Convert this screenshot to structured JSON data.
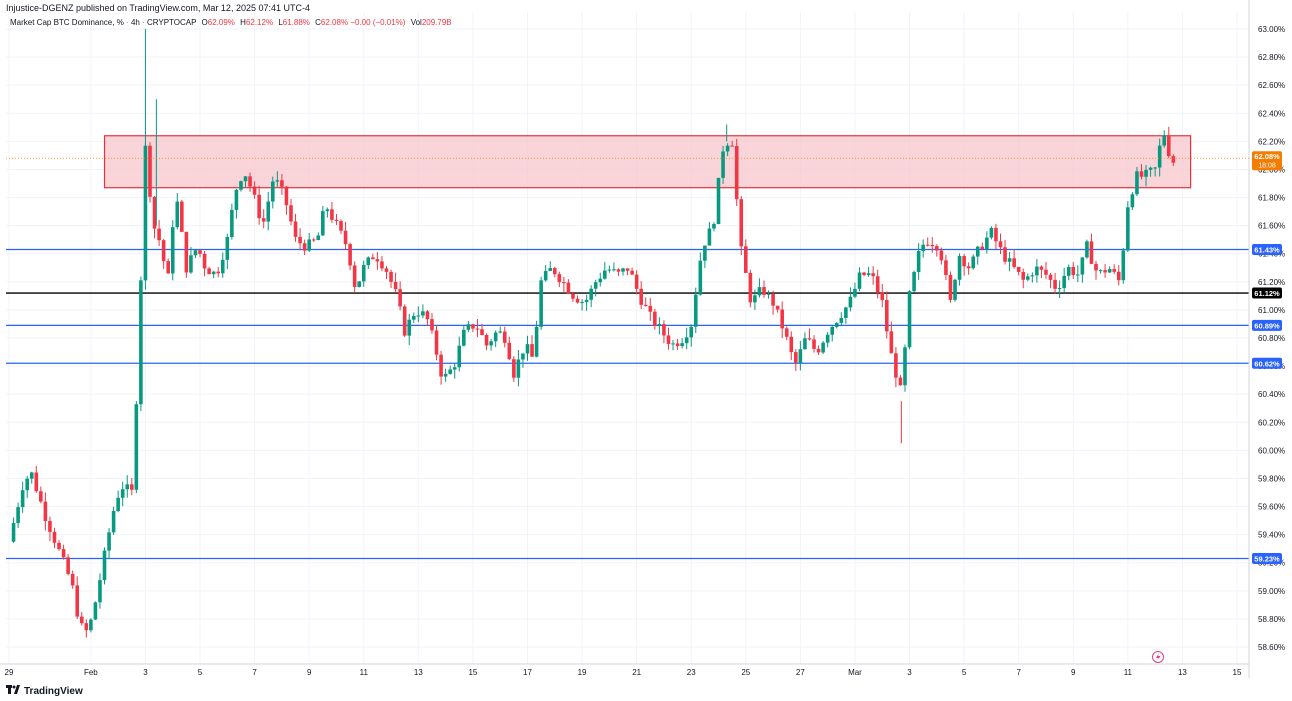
{
  "header": {
    "publisher": "Injustice-DGENZ published on TradingView.com, Mar 12, 2025 07:41 UTC-4",
    "symbol": "Market Cap BTC Dominance, %",
    "interval": "4h",
    "exchange": "CRYPTOCAP",
    "ohlc": {
      "o_label": "O",
      "o": "62.09%",
      "h_label": "H",
      "h": "62.12%",
      "l_label": "L",
      "l": "61.88%",
      "c_label": "C",
      "c": "62.08%",
      "chg": "−0.00 (−0.01%)",
      "vol_label": "Vol",
      "vol": "209.79B"
    }
  },
  "footer": {
    "brand": "TradingView",
    "logo": "tradingview-logo-icon"
  },
  "colors": {
    "up": "#089981",
    "down": "#f23645",
    "hline": "#2962ff",
    "support_black": "#000000",
    "zone_fill": "#f7c7cc",
    "zone_border": "#e6323e",
    "price_tag": "#f57c00",
    "grid": "#f0f3fa"
  },
  "chart_data": {
    "type": "candlestick",
    "ylim": [
      58.55,
      63.02
    ],
    "y_ticks": [
      "58.60%",
      "58.80%",
      "59.00%",
      "59.20%",
      "59.40%",
      "59.60%",
      "59.80%",
      "60.00%",
      "60.20%",
      "60.40%",
      "60.60%",
      "60.80%",
      "61.00%",
      "61.20%",
      "61.40%",
      "61.60%",
      "61.80%",
      "62.00%",
      "62.20%",
      "62.40%",
      "62.60%",
      "62.80%",
      "63.00%"
    ],
    "y_tick_values": [
      58.6,
      58.8,
      59.0,
      59.2,
      59.4,
      59.6,
      59.8,
      60.0,
      60.2,
      60.4,
      60.6,
      60.8,
      61.0,
      61.2,
      61.4,
      61.6,
      61.8,
      62.0,
      62.2,
      62.4,
      62.6,
      62.8,
      63.0
    ],
    "x_ticks": [
      {
        "label": "29",
        "day": 0
      },
      {
        "label": "Feb",
        "day": 3
      },
      {
        "label": "3",
        "day": 5
      },
      {
        "label": "5",
        "day": 7
      },
      {
        "label": "7",
        "day": 9
      },
      {
        "label": "9",
        "day": 11
      },
      {
        "label": "11",
        "day": 13
      },
      {
        "label": "13",
        "day": 15
      },
      {
        "label": "15",
        "day": 17
      },
      {
        "label": "17",
        "day": 19
      },
      {
        "label": "19",
        "day": 21
      },
      {
        "label": "21",
        "day": 23
      },
      {
        "label": "23",
        "day": 25
      },
      {
        "label": "25",
        "day": 27
      },
      {
        "label": "27",
        "day": 29
      },
      {
        "label": "Mar",
        "day": 31
      },
      {
        "label": "3",
        "day": 33
      },
      {
        "label": "5",
        "day": 35
      },
      {
        "label": "7",
        "day": 37
      },
      {
        "label": "9",
        "day": 39
      },
      {
        "label": "11",
        "day": 41
      },
      {
        "label": "13",
        "day": 43
      },
      {
        "label": "15",
        "day": 45
      }
    ],
    "day_range": [
      0,
      45.2
    ],
    "current_price": {
      "label": "62.08%",
      "countdown": "18:08",
      "value": 62.08
    },
    "horizontal_lines": [
      {
        "value": 61.43,
        "label": "61.43%",
        "color": "#2962ff"
      },
      {
        "value": 61.12,
        "label": "61.12%",
        "color": "#000000"
      },
      {
        "value": 60.89,
        "label": "60.89%",
        "color": "#2962ff"
      },
      {
        "value": 60.62,
        "label": "60.62%",
        "color": "#2962ff"
      },
      {
        "value": 59.23,
        "label": "59.23%",
        "color": "#2962ff"
      }
    ],
    "resistance_zone": {
      "top": 62.24,
      "bottom": 61.87,
      "day_start": 3.5,
      "day_end": 43.3
    },
    "anchors": [
      [
        0,
        59.35
      ],
      [
        0.5,
        59.75
      ],
      [
        0.8,
        59.85
      ],
      [
        1.3,
        59.55
      ],
      [
        1.8,
        59.3
      ],
      [
        2.3,
        59.05
      ],
      [
        2.6,
        58.75
      ],
      [
        2.9,
        58.7
      ],
      [
        3.2,
        58.95
      ],
      [
        3.5,
        59.25
      ],
      [
        3.8,
        59.55
      ],
      [
        4.1,
        59.75
      ],
      [
        4.5,
        59.7
      ],
      [
        4.7,
        60.5
      ],
      [
        5.0,
        62.15
      ],
      [
        5.3,
        61.6
      ],
      [
        5.6,
        61.45
      ],
      [
        5.8,
        61.15
      ],
      [
        6.1,
        61.85
      ],
      [
        6.5,
        61.3
      ],
      [
        6.9,
        61.45
      ],
      [
        7.2,
        61.3
      ],
      [
        7.6,
        61.25
      ],
      [
        8.0,
        61.5
      ],
      [
        8.3,
        61.85
      ],
      [
        8.6,
        62.0
      ],
      [
        8.9,
        61.85
      ],
      [
        9.3,
        61.6
      ],
      [
        9.7,
        61.95
      ],
      [
        10.1,
        61.8
      ],
      [
        10.5,
        61.5
      ],
      [
        10.9,
        61.45
      ],
      [
        11.3,
        61.5
      ],
      [
        11.6,
        61.75
      ],
      [
        12.0,
        61.6
      ],
      [
        12.4,
        61.45
      ],
      [
        12.7,
        61.15
      ],
      [
        13.0,
        61.3
      ],
      [
        13.4,
        61.4
      ],
      [
        13.8,
        61.3
      ],
      [
        14.2,
        61.1
      ],
      [
        14.5,
        60.85
      ],
      [
        14.9,
        61.0
      ],
      [
        15.3,
        60.95
      ],
      [
        15.6,
        60.75
      ],
      [
        15.9,
        60.5
      ],
      [
        16.3,
        60.6
      ],
      [
        16.7,
        60.85
      ],
      [
        17.1,
        60.9
      ],
      [
        17.5,
        60.75
      ],
      [
        17.9,
        60.85
      ],
      [
        18.2,
        60.8
      ],
      [
        18.5,
        60.55
      ],
      [
        18.9,
        60.75
      ],
      [
        19.2,
        60.65
      ],
      [
        19.5,
        61.2
      ],
      [
        19.9,
        61.3
      ],
      [
        20.3,
        61.2
      ],
      [
        20.7,
        61.1
      ],
      [
        21.1,
        61.05
      ],
      [
        21.5,
        61.2
      ],
      [
        21.9,
        61.3
      ],
      [
        22.3,
        61.25
      ],
      [
        22.7,
        61.3
      ],
      [
        23.1,
        61.1
      ],
      [
        23.5,
        60.95
      ],
      [
        23.9,
        60.85
      ],
      [
        24.3,
        60.75
      ],
      [
        24.7,
        60.8
      ],
      [
        25.0,
        60.9
      ],
      [
        25.4,
        61.45
      ],
      [
        25.8,
        61.6
      ],
      [
        26.2,
        62.2
      ],
      [
        26.5,
        62.2
      ],
      [
        26.8,
        61.45
      ],
      [
        27.2,
        61.05
      ],
      [
        27.6,
        61.15
      ],
      [
        28.0,
        61.05
      ],
      [
        28.4,
        60.85
      ],
      [
        28.8,
        60.6
      ],
      [
        29.2,
        60.8
      ],
      [
        29.6,
        60.7
      ],
      [
        30.0,
        60.85
      ],
      [
        30.4,
        60.95
      ],
      [
        30.8,
        61.05
      ],
      [
        31.2,
        61.25
      ],
      [
        31.6,
        61.25
      ],
      [
        32.0,
        61.05
      ],
      [
        32.3,
        60.7
      ],
      [
        32.7,
        60.4
      ],
      [
        33.0,
        61.1
      ],
      [
        33.4,
        61.45
      ],
      [
        33.7,
        61.5
      ],
      [
        34.1,
        61.45
      ],
      [
        34.5,
        61.05
      ],
      [
        34.8,
        61.4
      ],
      [
        35.2,
        61.3
      ],
      [
        35.6,
        61.45
      ],
      [
        36.0,
        61.55
      ],
      [
        36.4,
        61.4
      ],
      [
        36.8,
        61.3
      ],
      [
        37.2,
        61.2
      ],
      [
        37.6,
        61.3
      ],
      [
        38.0,
        61.25
      ],
      [
        38.4,
        61.15
      ],
      [
        38.8,
        61.3
      ],
      [
        39.2,
        61.25
      ],
      [
        39.5,
        61.45
      ],
      [
        39.9,
        61.25
      ],
      [
        40.3,
        61.3
      ],
      [
        40.7,
        61.2
      ],
      [
        41.0,
        61.75
      ],
      [
        41.3,
        61.95
      ],
      [
        41.6,
        61.95
      ],
      [
        42.0,
        62.0
      ],
      [
        42.3,
        62.28
      ],
      [
        42.6,
        62.05
      ],
      [
        42.8,
        62.08
      ]
    ]
  }
}
